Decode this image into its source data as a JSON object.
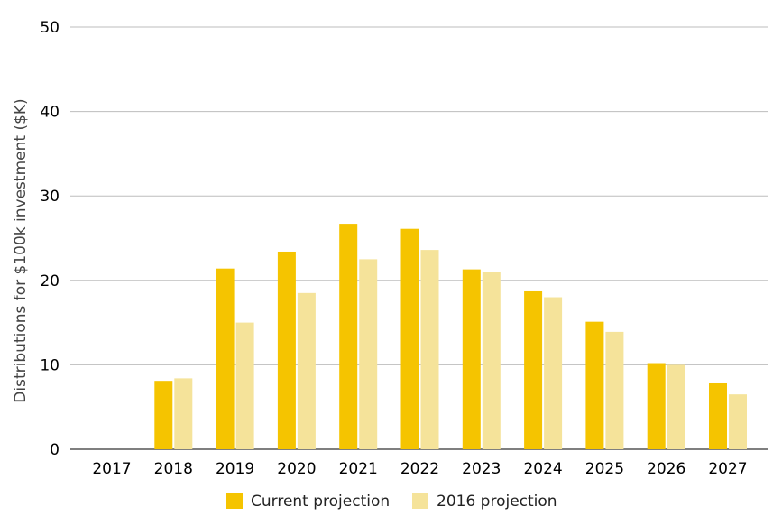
{
  "chart_data": {
    "type": "bar",
    "categories": [
      "2017",
      "2018",
      "2019",
      "2020",
      "2021",
      "2022",
      "2023",
      "2024",
      "2025",
      "2026",
      "2027"
    ],
    "series": [
      {
        "name": "Current projection",
        "color": "#F5C400",
        "values": [
          0,
          8.1,
          21.4,
          23.4,
          26.7,
          26.1,
          21.3,
          18.7,
          15.1,
          10.2,
          7.8
        ]
      },
      {
        "name": "2016 projection",
        "color": "#F5E39A",
        "values": [
          0,
          8.4,
          15.0,
          18.5,
          22.5,
          23.6,
          21.0,
          18.0,
          13.9,
          10.0,
          6.5
        ]
      }
    ],
    "ylabel": "Distributions for $100k investment ($K)",
    "xlabel": "",
    "ylim": [
      0,
      50
    ],
    "yticks": [
      "0",
      "10",
      "20",
      "30",
      "40",
      "50"
    ],
    "grid": true,
    "legend_position": "bottom"
  }
}
